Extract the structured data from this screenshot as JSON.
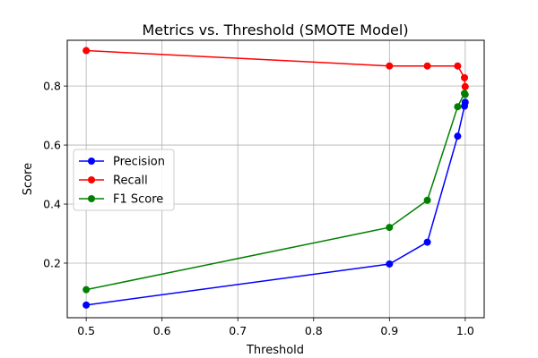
{
  "chart_data": {
    "type": "line",
    "title": "Metrics vs. Threshold (SMOTE Model)",
    "xlabel": "Threshold",
    "ylabel": "Score",
    "xlim": [
      0.475,
      1.025
    ],
    "ylim": [
      0.015,
      0.955
    ],
    "xticks": [
      0.5,
      0.6,
      0.7,
      0.8,
      0.9,
      1.0
    ],
    "xtick_labels": [
      "0.5",
      "0.6",
      "0.7",
      "0.8",
      "0.9",
      "1.0"
    ],
    "yticks": [
      0.2,
      0.4,
      0.6,
      0.8
    ],
    "ytick_labels": [
      "0.2",
      "0.4",
      "0.6",
      "0.8"
    ],
    "grid": true,
    "legend_position": "center-left",
    "x": [
      0.5,
      0.9,
      0.95,
      0.99,
      0.999,
      0.9999
    ],
    "series": [
      {
        "name": "Precision",
        "color": "#0000ff",
        "values": [
          0.058,
          0.197,
          0.271,
          0.63,
          0.732,
          0.745
        ]
      },
      {
        "name": "Recall",
        "color": "#ff0000",
        "values": [
          0.92,
          0.868,
          0.868,
          0.868,
          0.828,
          0.798
        ]
      },
      {
        "name": "F1 Score",
        "color": "#008000",
        "values": [
          0.11,
          0.321,
          0.413,
          0.73,
          0.775,
          0.771
        ]
      }
    ]
  }
}
